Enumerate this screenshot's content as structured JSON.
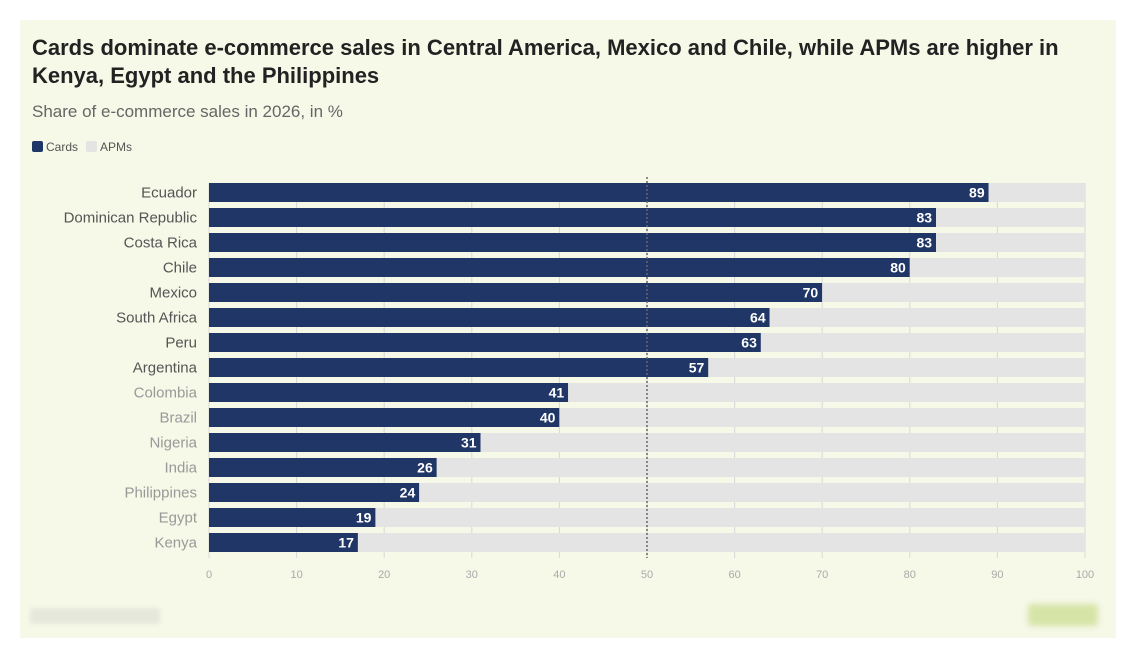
{
  "chart_data": {
    "type": "bar",
    "title": "Cards dominate e-commerce sales in Central America, Mexico and Chile, while APMs are higher in Kenya, Egypt and the Philippines",
    "subtitle": "Share of e-commerce sales in 2026, in %",
    "categories": [
      "Ecuador",
      "Dominican Republic",
      "Costa Rica",
      "Chile",
      "Mexico",
      "South Africa",
      "Peru",
      "Argentina",
      "Colombia",
      "Brazil",
      "Nigeria",
      "India",
      "Philippines",
      "Egypt",
      "Kenya"
    ],
    "series": [
      {
        "name": "Cards",
        "color": "#1f3666",
        "values": [
          89,
          83,
          83,
          80,
          70,
          64,
          63,
          57,
          41,
          40,
          31,
          26,
          24,
          19,
          17
        ]
      },
      {
        "name": "APMs",
        "color": "#e4e4e4",
        "values": [
          11,
          17,
          17,
          20,
          30,
          36,
          37,
          43,
          59,
          60,
          69,
          74,
          76,
          81,
          83
        ]
      }
    ],
    "stacked": true,
    "xlim": [
      0,
      100
    ],
    "xticks": [
      0,
      10,
      20,
      30,
      40,
      50,
      60,
      70,
      80,
      90,
      100
    ],
    "reference_line": 50,
    "legend": "top-left"
  }
}
